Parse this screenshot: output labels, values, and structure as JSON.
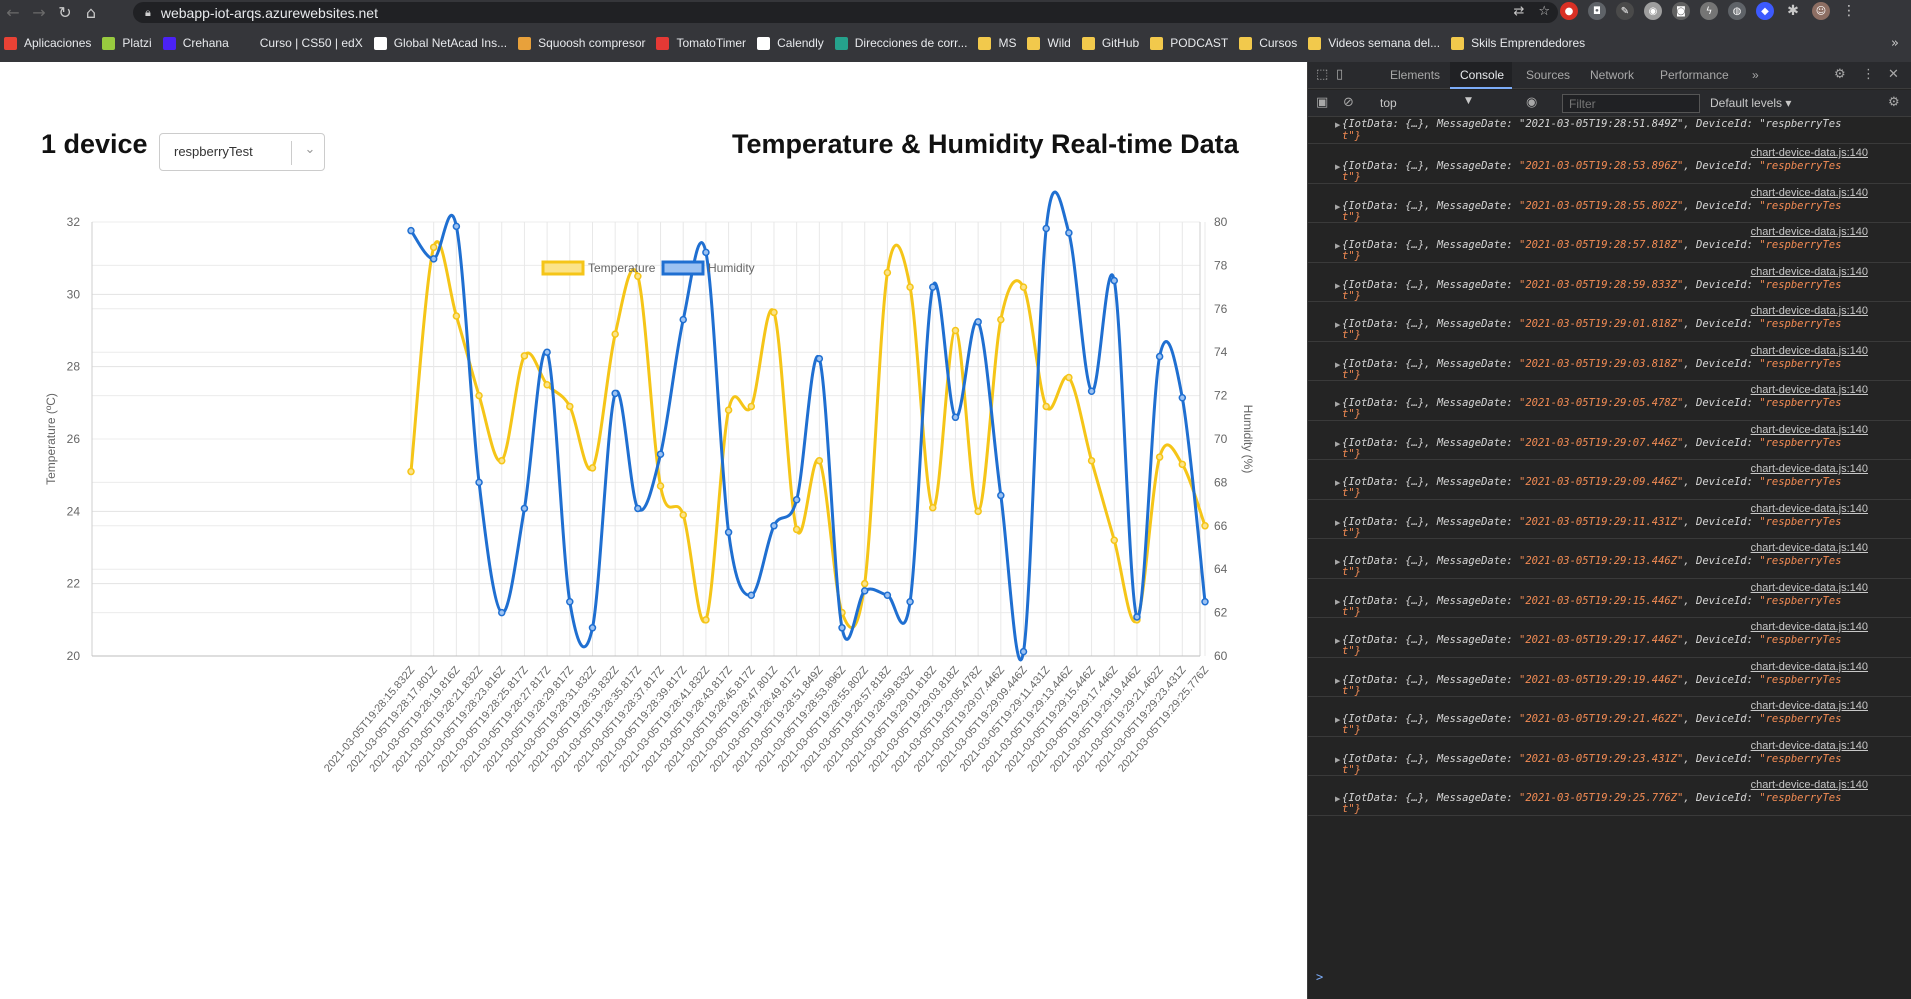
{
  "browser": {
    "url": "webapp-iot-arqs.azurewebsites.net",
    "bookmarks": [
      {
        "label": "Aplicaciones",
        "icon": "apps-grid-icon",
        "color": "#e94235"
      },
      {
        "label": "Platzi",
        "icon": "platzi-icon",
        "color": "#98ca3f"
      },
      {
        "label": "Crehana",
        "icon": "crehana-icon",
        "color": "#4b22f4"
      },
      {
        "label": "Curso | CS50 | edX",
        "icon": "edx-icon",
        "color": "#35363a"
      },
      {
        "label": "Global NetAcad Ins...",
        "icon": "netacad-icon",
        "color": "#ffffff"
      },
      {
        "label": "Squoosh compresor",
        "icon": "squoosh-icon",
        "color": "#e8a13b"
      },
      {
        "label": "TomatoTimer",
        "icon": "tomato-icon",
        "color": "#e53935"
      },
      {
        "label": "Calendly",
        "icon": "calendly-icon",
        "color": "#ffffff"
      },
      {
        "label": "Direcciones de corr...",
        "icon": "contacts-icon",
        "color": "#25a28c"
      },
      {
        "label": "MS",
        "icon": "folder-icon",
        "color": "#f2c94c"
      },
      {
        "label": "Wild",
        "icon": "folder-icon",
        "color": "#f2c94c"
      },
      {
        "label": "GitHub",
        "icon": "folder-icon",
        "color": "#f2c94c"
      },
      {
        "label": "PODCAST",
        "icon": "folder-icon",
        "color": "#f2c94c"
      },
      {
        "label": "Cursos",
        "icon": "folder-icon",
        "color": "#f2c94c"
      },
      {
        "label": "Videos semana del...",
        "icon": "folder-icon",
        "color": "#f2c94c"
      },
      {
        "label": "Skils Emprendedores",
        "icon": "folder-icon",
        "color": "#f2c94c"
      }
    ],
    "more": "»"
  },
  "page": {
    "device_count": "1 device",
    "selected_device": "respberryTest",
    "title": "Temperature & Humidity Real-time Data"
  },
  "chart_data": {
    "type": "line",
    "title": "",
    "x": [
      "2021-03-05T19:28:15.832Z",
      "2021-03-05T19:28:17.801Z",
      "2021-03-05T19:28:19.816Z",
      "2021-03-05T19:28:21.832Z",
      "2021-03-05T19:28:23.816Z",
      "2021-03-05T19:28:25.817Z",
      "2021-03-05T19:28:27.817Z",
      "2021-03-05T19:28:29.817Z",
      "2021-03-05T19:28:31.832Z",
      "2021-03-05T19:28:33.832Z",
      "2021-03-05T19:28:35.817Z",
      "2021-03-05T19:28:37.817Z",
      "2021-03-05T19:28:39.817Z",
      "2021-03-05T19:28:41.832Z",
      "2021-03-05T19:28:43.817Z",
      "2021-03-05T19:28:45.817Z",
      "2021-03-05T19:28:47.801Z",
      "2021-03-05T19:28:49.817Z",
      "2021-03-05T19:28:51.849Z",
      "2021-03-05T19:28:53.896Z",
      "2021-03-05T19:28:55.802Z",
      "2021-03-05T19:28:57.818Z",
      "2021-03-05T19:28:59.833Z",
      "2021-03-05T19:29:01.818Z",
      "2021-03-05T19:29:03.818Z",
      "2021-03-05T19:29:05.478Z",
      "2021-03-05T19:29:07.446Z",
      "2021-03-05T19:29:09.446Z",
      "2021-03-05T19:29:11.431Z",
      "2021-03-05T19:29:13.446Z",
      "2021-03-05T19:29:15.446Z",
      "2021-03-05T19:29:17.446Z",
      "2021-03-05T19:29:19.446Z",
      "2021-03-05T19:29:21.462Z",
      "2021-03-05T19:29:23.431Z",
      "2021-03-05T19:29:25.776Z"
    ],
    "series": [
      {
        "name": "Temperature",
        "axis": "left",
        "color": "#f5c518",
        "fill": "#fbe38a",
        "values": [
          25.1,
          31.3,
          29.4,
          27.2,
          25.4,
          28.3,
          27.5,
          26.9,
          25.2,
          28.9,
          30.5,
          24.7,
          23.9,
          21.0,
          26.8,
          26.9,
          29.5,
          23.5,
          25.4,
          21.2,
          22.0,
          30.6,
          30.2,
          24.1,
          29.0,
          24.0,
          29.3,
          30.2,
          26.9,
          27.7,
          25.4,
          23.2,
          21.0,
          25.5,
          25.3,
          23.6
        ]
      },
      {
        "name": "Humidity",
        "axis": "right",
        "color": "#1f6fd1",
        "fill": "#9cc2f2",
        "values": [
          79.6,
          78.3,
          79.8,
          68.0,
          62.0,
          66.8,
          74.0,
          62.5,
          61.3,
          72.1,
          66.8,
          69.3,
          75.5,
          78.6,
          65.7,
          62.8,
          66.0,
          67.2,
          73.7,
          61.3,
          63.0,
          62.8,
          62.5,
          77.0,
          71.0,
          75.4,
          67.4,
          60.2,
          79.7,
          79.5,
          72.2,
          77.3,
          61.8,
          73.8,
          71.9,
          62.5
        ]
      }
    ],
    "ylabel_left": "Temperature (ºC)",
    "ylabel_right": "Humidity (%)",
    "ylim_left": [
      20,
      32
    ],
    "ylim_right": [
      60,
      80
    ],
    "yticks_left": [
      20,
      22,
      24,
      26,
      28,
      30,
      32
    ],
    "yticks_right": [
      60,
      62,
      64,
      66,
      68,
      70,
      72,
      74,
      76,
      78,
      80
    ],
    "grid": true,
    "legend": "top"
  },
  "devtools": {
    "tabs": [
      "Elements",
      "Console",
      "Sources",
      "Network",
      "Performance"
    ],
    "active_tab": "Console",
    "more": "»",
    "context": "top",
    "filter_placeholder": "Filter",
    "levels": "Default levels ▾",
    "source": "chart-device-data.js:140",
    "log_prefix": "{IotData: {…}, MessageDate: ",
    "log_device_key": ", DeviceId: ",
    "log_device_value": "\"respberryTes",
    "log_device_wrap": "t\"}",
    "first_line": "{IotData: {…}, MessageDate: \"2021-03-05T19:28:51.849Z\", DeviceId: \"respberryTes",
    "messages": [
      "\"2021-03-05T19:28:53.896Z\"",
      "\"2021-03-05T19:28:55.802Z\"",
      "\"2021-03-05T19:28:57.818Z\"",
      "\"2021-03-05T19:28:59.833Z\"",
      "\"2021-03-05T19:29:01.818Z\"",
      "\"2021-03-05T19:29:03.818Z\"",
      "\"2021-03-05T19:29:05.478Z\"",
      "\"2021-03-05T19:29:07.446Z\"",
      "\"2021-03-05T19:29:09.446Z\"",
      "\"2021-03-05T19:29:11.431Z\"",
      "\"2021-03-05T19:29:13.446Z\"",
      "\"2021-03-05T19:29:15.446Z\"",
      "\"2021-03-05T19:29:17.446Z\"",
      "\"2021-03-05T19:29:19.446Z\"",
      "\"2021-03-05T19:29:21.462Z\"",
      "\"2021-03-05T19:29:23.431Z\"",
      "\"2021-03-05T19:29:25.776Z\""
    ],
    "prompt": ">"
  }
}
